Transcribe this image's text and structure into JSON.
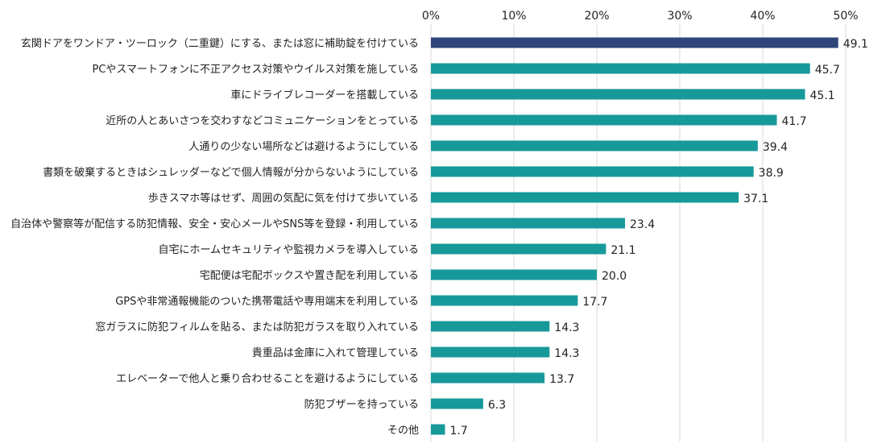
{
  "chart_data": {
    "type": "bar",
    "orientation": "horizontal",
    "title": "",
    "xlabel": "",
    "ylabel": "",
    "xlim": [
      0,
      50
    ],
    "ticks": [
      0,
      10,
      20,
      30,
      40,
      50
    ],
    "tick_labels": [
      "0%",
      "10%",
      "20%",
      "30%",
      "40%",
      "50%"
    ],
    "grid": true,
    "categories": [
      "玄関ドアをワンドア・ツーロック（二重鍵）にする、または窓に補助錠を付けている",
      "PCやスマートフォンに不正アクセス対策やウイルス対策を施している",
      "車にドライブレコーダーを搭載している",
      "近所の人とあいさつを交わすなどコミュニケーションをとっている",
      "人通りの少ない場所などは避けるようにしている",
      "書類を破棄するときはシュレッダーなどで個人情報が分からないようにしている",
      "歩きスマホ等はせず、周囲の気配に気を付けて歩いている",
      "自治体や警察等が配信する防犯情報、安全・安心メールやSNS等を登録・利用している",
      "自宅にホームセキュリティや監視カメラを導入している",
      "宅配便は宅配ボックスや置き配を利用している",
      "GPSや非常通報機能のついた携帯電話や専用端末を利用している",
      "窓ガラスに防犯フィルムを貼る、または防犯ガラスを取り入れている",
      "貴重品は金庫に入れて管理している",
      "エレベーターで他人と乗り合わせることを避けるようにしている",
      "防犯ブザーを持っている",
      "その他"
    ],
    "values": [
      49.1,
      45.7,
      45.1,
      41.7,
      39.4,
      38.9,
      37.1,
      23.4,
      21.1,
      20.0,
      17.7,
      14.3,
      14.3,
      13.7,
      6.3,
      1.7
    ],
    "value_labels": [
      "49.1",
      "45.7",
      "45.1",
      "41.7",
      "39.4",
      "38.9",
      "37.1",
      "23.4",
      "21.1",
      "20.0",
      "17.7",
      "14.3",
      "14.3",
      "13.7",
      "6.3",
      "1.7"
    ],
    "highlight_index": 0,
    "colors": {
      "highlight": "#2e4679",
      "bar": "#17999a",
      "grid": "#d9d9d9"
    }
  }
}
